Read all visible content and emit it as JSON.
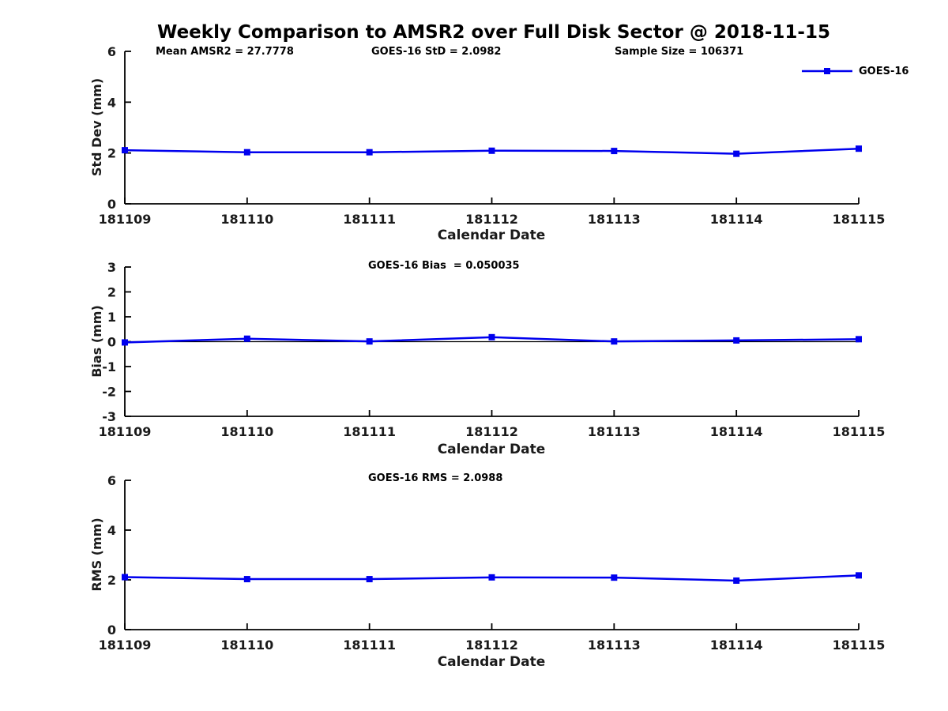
{
  "title": "Weekly Comparison to AMSR2 over Full Disk Sector @ 2018-11-15",
  "legend": {
    "label": "GOES-16"
  },
  "colors": {
    "line": "#0000EE",
    "marker": "#0000EE",
    "axis": "#000000",
    "tick_text": "#1a1a1a",
    "zero_line": "#000000"
  },
  "chart_data": [
    {
      "type": "line",
      "name": "std-dev",
      "title": "",
      "annotations": [
        "Mean AMSR2 = 27.7778",
        "GOES-16 StD = 2.0982",
        "Sample Size = 106371"
      ],
      "categories": [
        "181109",
        "181110",
        "181111",
        "181112",
        "181113",
        "181114",
        "181115"
      ],
      "series": [
        {
          "name": "GOES-16",
          "values": [
            2.11,
            2.03,
            2.03,
            2.09,
            2.08,
            1.97,
            2.17
          ]
        }
      ],
      "xlabel": "Calendar Date",
      "ylabel": "Std Dev (mm)",
      "ylim": [
        0,
        6
      ],
      "yticks": [
        0,
        2,
        4,
        6
      ],
      "zero_line": false,
      "grid": false,
      "legend_position": "top-right"
    },
    {
      "type": "line",
      "name": "bias",
      "title": "",
      "annotations": [
        "GOES-16 Bias  = 0.050035"
      ],
      "categories": [
        "181109",
        "181110",
        "181111",
        "181112",
        "181113",
        "181114",
        "181115"
      ],
      "series": [
        {
          "name": "GOES-16",
          "values": [
            -0.03,
            0.12,
            0.01,
            0.18,
            0.01,
            0.05,
            0.1
          ]
        }
      ],
      "xlabel": "Calendar Date",
      "ylabel": "Bias (mm)",
      "ylim": [
        -3,
        3
      ],
      "yticks": [
        3,
        2,
        1,
        0,
        -1,
        -2,
        -3
      ],
      "zero_line": true,
      "grid": false,
      "legend_position": "none"
    },
    {
      "type": "line",
      "name": "rms",
      "title": "",
      "annotations": [
        "GOES-16 RMS = 2.0988"
      ],
      "categories": [
        "181109",
        "181110",
        "181111",
        "181112",
        "181113",
        "181114",
        "181115"
      ],
      "series": [
        {
          "name": "GOES-16",
          "values": [
            2.11,
            2.03,
            2.03,
            2.1,
            2.09,
            1.97,
            2.18
          ]
        }
      ],
      "xlabel": "Calendar Date",
      "ylabel": "RMS (mm)",
      "ylim": [
        0,
        6
      ],
      "yticks": [
        0,
        2,
        4,
        6
      ],
      "zero_line": false,
      "grid": false,
      "legend_position": "none"
    }
  ]
}
